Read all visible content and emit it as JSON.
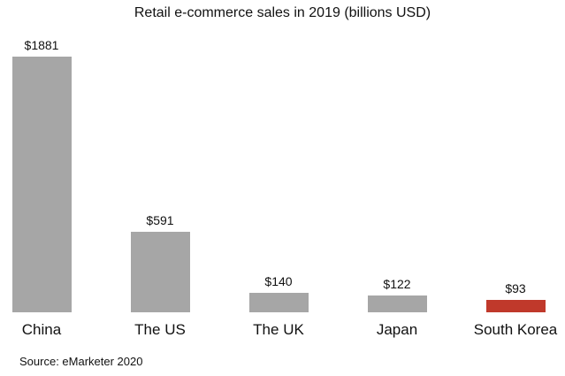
{
  "chart_data": {
    "type": "bar",
    "title": "Retail e-commerce sales in 2019 (billions USD)",
    "categories": [
      "China",
      "The US",
      "The UK",
      "Japan",
      "South Korea"
    ],
    "values": [
      1881,
      591,
      140,
      122,
      93
    ],
    "value_labels": [
      "$1881",
      "$591",
      "$140",
      "$122",
      "$93"
    ],
    "colors": [
      "#a6a6a6",
      "#a6a6a6",
      "#a6a6a6",
      "#a6a6a6",
      "#c0392b"
    ],
    "highlight": "South Korea",
    "xlabel": "",
    "ylabel": "",
    "ylim": [
      0,
      1881
    ],
    "grid": false,
    "legend": "none",
    "source": "Source: eMarketer 2020"
  }
}
